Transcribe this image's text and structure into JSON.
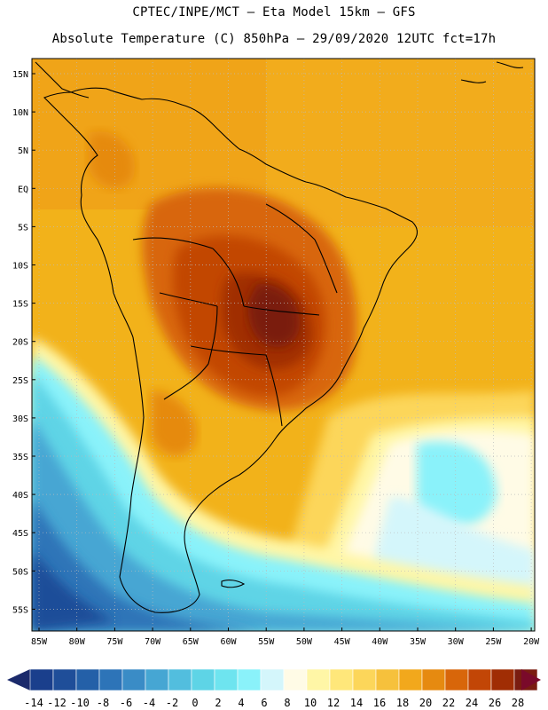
{
  "header": {
    "line1": "CPTEC/INPE/MCT –  Eta Model 15km – GFS",
    "line2": "Absolute Temperature (C) 850hPa – 29/09/2020 12UTC fct=17h"
  },
  "axes": {
    "lat_labels": [
      "15N",
      "10N",
      "5N",
      "EQ",
      "5S",
      "10S",
      "15S",
      "20S",
      "25S",
      "30S",
      "35S",
      "40S",
      "45S",
      "50S",
      "55S"
    ],
    "lon_labels": [
      "85W",
      "80W",
      "75W",
      "70W",
      "65W",
      "60W",
      "55W",
      "50W",
      "45W",
      "40W",
      "35W",
      "30W",
      "25W",
      "20W"
    ]
  },
  "colorbar": {
    "labels": [
      "-14",
      "-12",
      "-10",
      "-8",
      "-6",
      "-4",
      "-2",
      "0",
      "2",
      "4",
      "6",
      "8",
      "10",
      "12",
      "14",
      "16",
      "18",
      "20",
      "22",
      "24",
      "26",
      "28"
    ],
    "colors": [
      "#1a3f8c",
      "#1f4e99",
      "#2460a8",
      "#2d74b8",
      "#3a8cc6",
      "#46a6d3",
      "#52bede",
      "#5ed4e6",
      "#6ee4ef",
      "#8af2fa",
      "#d4f6fb",
      "#fffbe6",
      "#fff6a6",
      "#ffe77a",
      "#fcd65a",
      "#f6c13c",
      "#f2a81c",
      "#e68a10",
      "#d8660a",
      "#c24606",
      "#a02d04",
      "#7a1c10"
    ],
    "low_arrow_color": "#1b2a6b",
    "high_arrow_color": "#7a0a2a"
  },
  "colors": {
    "ocean_default": "#f2b21a",
    "coast": "#000000"
  }
}
